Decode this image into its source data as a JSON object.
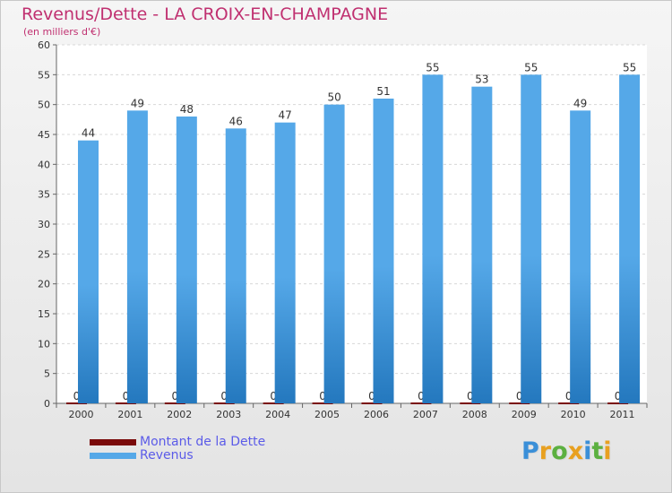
{
  "header": {
    "title": "Revenus/Dette - LA CROIX-EN-CHAMPAGNE",
    "subtitle": "(en milliers d'€)"
  },
  "colors": {
    "title": "#c03070",
    "dette": "#7a0a0a",
    "revenus": "#55a8e8",
    "revenus_dark": "#2478be",
    "legend_text": "#5b5be8"
  },
  "chart_data": {
    "type": "bar",
    "title": "Revenus/Dette - LA CROIX-EN-CHAMPAGNE",
    "ylabel": "(en milliers d'€)",
    "xlabel": "",
    "categories": [
      "2000",
      "2001",
      "2002",
      "2003",
      "2004",
      "2005",
      "2006",
      "2007",
      "2008",
      "2009",
      "2010",
      "2011"
    ],
    "series": [
      {
        "name": "Montant de la Dette",
        "values": [
          0,
          0,
          0,
          0,
          0,
          0,
          0,
          0,
          0,
          0,
          0,
          0
        ]
      },
      {
        "name": "Revenus",
        "values": [
          44,
          49,
          48,
          46,
          47,
          50,
          51,
          55,
          53,
          55,
          49,
          55
        ]
      }
    ],
    "ylim": [
      0,
      60
    ],
    "yticks": [
      0,
      5,
      10,
      15,
      20,
      25,
      30,
      35,
      40,
      45,
      50,
      55,
      60
    ],
    "grid": true,
    "legend_position": "bottom-left"
  },
  "legend": {
    "items": [
      {
        "label": "Montant de la Dette",
        "color": "#7a0a0a"
      },
      {
        "label": "Revenus",
        "color": "#55a8e8"
      }
    ]
  },
  "logo": {
    "letters": [
      "P",
      "r",
      "o",
      "x",
      "i",
      "t",
      "i"
    ],
    "colors": [
      "#3a8fd8",
      "#e8a020",
      "#5cb040",
      "#e8a020",
      "#3a8fd8",
      "#5cb040",
      "#e8a020"
    ]
  }
}
